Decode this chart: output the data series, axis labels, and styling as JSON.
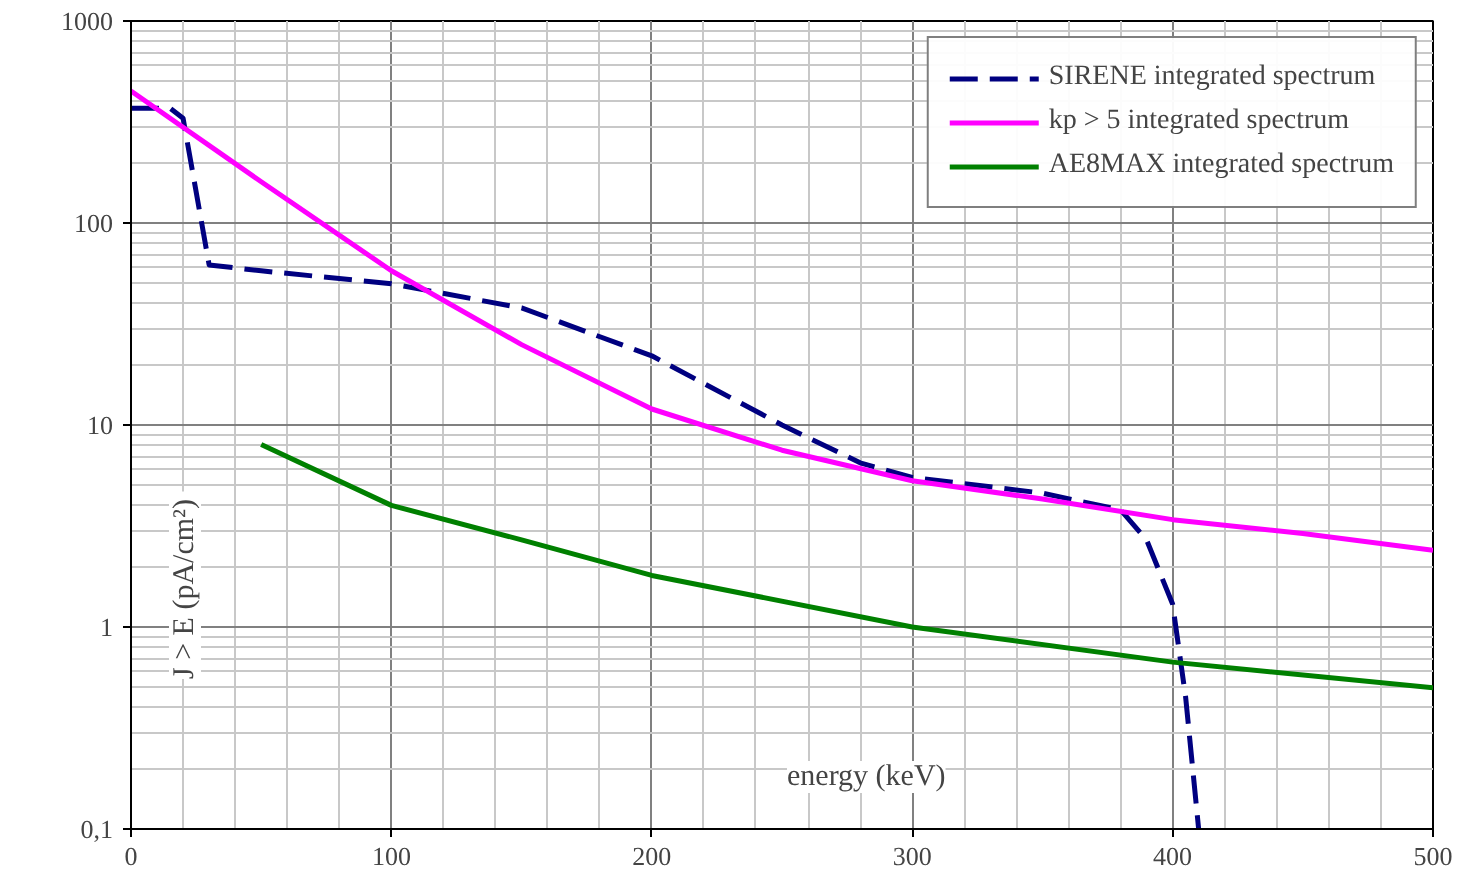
{
  "chart_data": {
    "type": "line",
    "xlabel": "energy (keV)",
    "ylabel": "J > E  (pA/cm²)",
    "log": "y",
    "grid": true,
    "legend": "top right",
    "xlim": [
      0,
      500
    ],
    "xticks": [
      0,
      100,
      200,
      300,
      400,
      500
    ],
    "ylim": [
      0.1,
      1000
    ],
    "yticks": [
      {
        "value": 0.1,
        "label": "0,1"
      },
      1,
      10,
      100,
      1000
    ],
    "series": [
      {
        "name": "SIRENE integrated spectrum",
        "color": "#000080",
        "line_style": "dashed",
        "x": [
          0,
          15,
          20,
          30,
          50,
          100,
          150,
          200,
          250,
          280,
          300,
          350,
          380,
          390,
          400,
          405,
          410
        ],
        "values": [
          370,
          370,
          330,
          62,
          58,
          50,
          38,
          22,
          10,
          6.5,
          5.5,
          4.6,
          3.8,
          2.7,
          1.3,
          0.45,
          0.1
        ]
      },
      {
        "name": "kp > 5 integrated spectrum",
        "color": "#ff00ff",
        "line_style": "solid",
        "x": [
          0,
          50,
          100,
          150,
          200,
          250,
          300,
          350,
          400,
          450,
          500
        ],
        "values": [
          450,
          160,
          58,
          25,
          12,
          7.5,
          5.3,
          4.3,
          3.4,
          2.9,
          2.4
        ]
      },
      {
        "name": "AE8MAX integrated spectrum",
        "color": "#008000",
        "line_style": "solid",
        "x": [
          50,
          100,
          150,
          200,
          300,
          400,
          500
        ],
        "values": [
          8,
          4,
          2.7,
          1.8,
          1.0,
          0.67,
          0.5
        ]
      }
    ]
  }
}
